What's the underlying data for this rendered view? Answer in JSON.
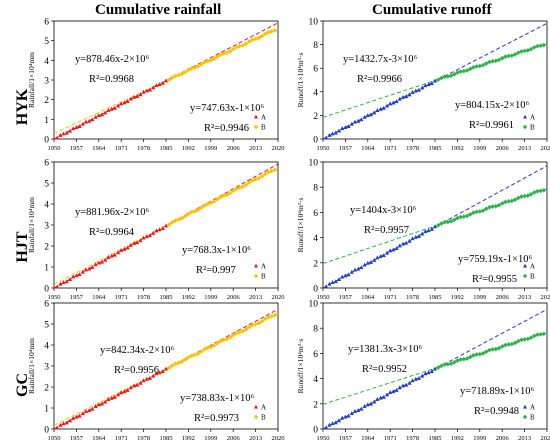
{
  "column_titles": [
    "Cumulative rainfall",
    "Cumulative runoff"
  ],
  "row_labels": [
    "HYK",
    "HJT",
    "GC"
  ],
  "colors": {
    "A_rain": "#e31a1c",
    "B_rain": "#ffc000",
    "A_runoff": "#1f3fbf",
    "B_runoff": "#2db34a",
    "trend_A_rain": "#e31a1c",
    "trend_B_rain": "#ffc000",
    "trend_A_runoff": "#1f3fbf",
    "trend_B_runoff": "#2db34a"
  },
  "chart_data": [
    {
      "id": "HYK-rainfall",
      "type": "scatter",
      "ylabel": "Rainfall/1×10⁴mm",
      "xlim": [
        1950,
        2020
      ],
      "ylim": [
        0,
        6
      ],
      "yticks": [
        0,
        1,
        2,
        3,
        4,
        5,
        6
      ],
      "xticks": [
        1950,
        1957,
        1964,
        1971,
        1978,
        1985,
        1992,
        1999,
        2006,
        2013,
        2020
      ],
      "series": [
        {
          "name": "A",
          "x_range": [
            1951,
            1985
          ],
          "y_range": [
            0.08,
            2.95
          ]
        },
        {
          "name": "B",
          "x_range": [
            1986,
            2019
          ],
          "y_range": [
            3.03,
            5.55
          ]
        }
      ],
      "annotations": [
        {
          "eq": "y=878.46x-2×10⁶",
          "r2": "R²=0.9968"
        },
        {
          "eq": "y=747.63x-1×10⁶",
          "r2": "R²=0.9946"
        }
      ]
    },
    {
      "id": "HYK-runoff",
      "type": "scatter",
      "ylabel": "Runoff/1×10⁴m³·s",
      "xlim": [
        1950,
        2020
      ],
      "ylim": [
        0,
        10
      ],
      "yticks": [
        0,
        2,
        4,
        6,
        8,
        10
      ],
      "xticks": [
        1950,
        1957,
        1964,
        1971,
        1978,
        1985,
        1992,
        1999,
        2006,
        2013,
        2020
      ],
      "series": [
        {
          "name": "A",
          "x_range": [
            1951,
            1985
          ],
          "y_range": [
            0.14,
            4.9
          ]
        },
        {
          "name": "B",
          "x_range": [
            1986,
            2019
          ],
          "y_range": [
            5.05,
            8.0
          ]
        }
      ],
      "annotations": [
        {
          "eq": "y=1432.7x-3×10⁶",
          "r2": "R²=0.9966"
        },
        {
          "eq": "y=804.15x-2×10⁶",
          "r2": "R²=0.9961"
        }
      ]
    },
    {
      "id": "HJT-rainfall",
      "type": "scatter",
      "ylabel": "Rainfall/1×10⁴mm",
      "xlim": [
        1950,
        2020
      ],
      "ylim": [
        0,
        6
      ],
      "yticks": [
        0,
        1,
        2,
        3,
        4,
        5,
        6
      ],
      "xticks": [
        1950,
        1957,
        1964,
        1971,
        1978,
        1985,
        1992,
        1999,
        2006,
        2013,
        2020
      ],
      "series": [
        {
          "name": "A",
          "x_range": [
            1951,
            1985
          ],
          "y_range": [
            0.08,
            2.95
          ]
        },
        {
          "name": "B",
          "x_range": [
            1986,
            2019
          ],
          "y_range": [
            3.03,
            5.65
          ]
        }
      ],
      "annotations": [
        {
          "eq": "y=881.96x-2×10⁶",
          "r2": "R²=0.9964"
        },
        {
          "eq": "y=768.3x-1×10⁶",
          "r2": "R²=0.997"
        }
      ]
    },
    {
      "id": "HJT-runoff",
      "type": "scatter",
      "ylabel": "Runoff/1×10⁴m³·s",
      "xlim": [
        1950,
        2020
      ],
      "ylim": [
        0,
        10
      ],
      "yticks": [
        0,
        2,
        4,
        6,
        8,
        10
      ],
      "xticks": [
        1950,
        1957,
        1964,
        1971,
        1978,
        1985,
        1992,
        1999,
        2006,
        2013,
        2020
      ],
      "series": [
        {
          "name": "A",
          "x_range": [
            1951,
            1985
          ],
          "y_range": [
            0.14,
            4.85
          ]
        },
        {
          "name": "B",
          "x_range": [
            1986,
            2019
          ],
          "y_range": [
            5.0,
            7.8
          ]
        }
      ],
      "annotations": [
        {
          "eq": "y=1404x-3×10⁶",
          "r2": "R²=0.9957"
        },
        {
          "eq": "y=759.19x-1×10⁶",
          "r2": "R²=0.9955"
        }
      ]
    },
    {
      "id": "GC-rainfall",
      "type": "scatter",
      "ylabel": "Rainfall/1×10⁴mm",
      "xlim": [
        1950,
        2020
      ],
      "ylim": [
        0,
        6
      ],
      "yticks": [
        0,
        1,
        2,
        3,
        4,
        5,
        6
      ],
      "xticks": [
        1950,
        1957,
        1964,
        1971,
        1978,
        1985,
        1992,
        1999,
        2006,
        2013,
        2020
      ],
      "series": [
        {
          "name": "A",
          "x_range": [
            1951,
            1985
          ],
          "y_range": [
            0.08,
            2.85
          ]
        },
        {
          "name": "B",
          "x_range": [
            1986,
            2019
          ],
          "y_range": [
            2.93,
            5.45
          ]
        }
      ],
      "annotations": [
        {
          "eq": "y=842.34x-2×10⁶",
          "r2": "R²=0.9956"
        },
        {
          "eq": "y=738.83x-1×10⁶",
          "r2": "R²=0.9973"
        }
      ]
    },
    {
      "id": "GC-runoff",
      "type": "scatter",
      "ylabel": "Runoff/1×10⁴m³·s",
      "xlim": [
        1950,
        2020
      ],
      "ylim": [
        0,
        10
      ],
      "yticks": [
        0,
        2,
        4,
        6,
        8,
        10
      ],
      "xticks": [
        1950,
        1957,
        1964,
        1971,
        1978,
        1985,
        1992,
        1999,
        2006,
        2013,
        2020
      ],
      "series": [
        {
          "name": "A",
          "x_range": [
            1951,
            1985
          ],
          "y_range": [
            0.14,
            4.75
          ]
        },
        {
          "name": "B",
          "x_range": [
            1986,
            2019
          ],
          "y_range": [
            4.9,
            7.6
          ]
        }
      ],
      "annotations": [
        {
          "eq": "y=1381.3x-3×10⁶",
          "r2": "R²=0.9952"
        },
        {
          "eq": "y=718.89x-1×10⁶",
          "r2": "R²=0.9948"
        }
      ]
    }
  ]
}
